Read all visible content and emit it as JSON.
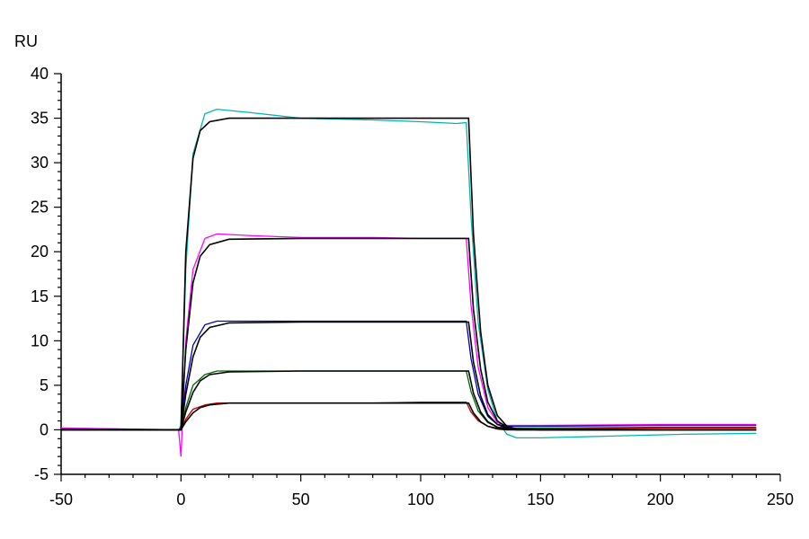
{
  "chart_data": {
    "type": "line",
    "title": "",
    "xlabel": "",
    "ylabel": "RU",
    "xlim": [
      -50,
      250
    ],
    "ylim": [
      -5,
      40
    ],
    "xticks": [
      -50,
      0,
      50,
      100,
      150,
      200,
      250
    ],
    "yticks": [
      -5,
      0,
      5,
      10,
      15,
      20,
      25,
      30,
      35,
      40
    ],
    "grid": false,
    "legend": "none",
    "series": [
      {
        "color": "#00b4b4",
        "x": [
          -50,
          -1,
          0,
          2,
          5,
          10,
          15,
          30,
          50,
          80,
          100,
          115,
          119,
          121,
          124,
          128,
          132,
          136,
          140,
          150,
          180,
          210,
          240
        ],
        "y": [
          0.2,
          0,
          0.5,
          18,
          31,
          35.5,
          36,
          35.6,
          35,
          34.8,
          34.6,
          34.4,
          34.5,
          24,
          12,
          4.5,
          1.0,
          -0.5,
          -0.9,
          -0.9,
          -0.7,
          -0.5,
          -0.4
        ]
      },
      {
        "color": "#ff00ff",
        "x": [
          -50,
          -1,
          0,
          2,
          5,
          10,
          15,
          30,
          50,
          80,
          100,
          115,
          119,
          121,
          124,
          128,
          132,
          136,
          140,
          150,
          200,
          240
        ],
        "y": [
          0.2,
          0,
          -3,
          10,
          18,
          21.5,
          22,
          21.8,
          21.6,
          21.6,
          21.5,
          21.5,
          21.5,
          14,
          7,
          2.5,
          0.8,
          0.5,
          0.5,
          0.5,
          0.6,
          0.6
        ]
      },
      {
        "color": "#0000b4",
        "x": [
          -50,
          -1,
          0,
          2,
          5,
          10,
          15,
          30,
          50,
          80,
          100,
          115,
          119,
          121,
          124,
          128,
          132,
          136,
          140,
          150,
          200,
          240
        ],
        "y": [
          0.1,
          0,
          0.2,
          5,
          9.5,
          11.8,
          12.2,
          12.2,
          12.2,
          12.2,
          12.2,
          12.2,
          12.2,
          8,
          4,
          1.5,
          0.6,
          0.4,
          0.4,
          0.4,
          0.5,
          0.5
        ]
      },
      {
        "color": "#006400",
        "x": [
          -50,
          -1,
          0,
          2,
          5,
          10,
          15,
          30,
          50,
          80,
          100,
          115,
          119,
          121,
          124,
          128,
          132,
          136,
          140,
          150,
          200,
          240
        ],
        "y": [
          0.1,
          0,
          0.2,
          2.5,
          5.0,
          6.2,
          6.6,
          6.6,
          6.6,
          6.6,
          6.6,
          6.6,
          6.6,
          4.3,
          2.1,
          0.8,
          0.3,
          0.2,
          0.2,
          0.2,
          0.3,
          0.3
        ]
      },
      {
        "color": "#c00000",
        "x": [
          -50,
          -1,
          0,
          2,
          5,
          10,
          15,
          30,
          50,
          80,
          100,
          115,
          119,
          121,
          124,
          128,
          132,
          136,
          140,
          150,
          200,
          240
        ],
        "y": [
          0.0,
          0,
          0.1,
          1.2,
          2.3,
          2.8,
          3.0,
          3.0,
          3.0,
          3.0,
          3.1,
          3.1,
          3.1,
          2.0,
          1.0,
          0.4,
          0.2,
          0.1,
          0.1,
          0.1,
          0.2,
          0.2
        ]
      }
    ],
    "fits": [
      {
        "color": "#000000",
        "x": [
          -50,
          -1,
          0,
          2,
          5,
          8,
          12,
          20,
          50,
          80,
          110,
          119,
          120,
          122,
          125,
          128,
          132,
          136,
          140,
          150,
          240
        ],
        "y": [
          0,
          0,
          0,
          20,
          30.5,
          33.6,
          34.6,
          35,
          35,
          35,
          35,
          35,
          35,
          22,
          11,
          5,
          1.6,
          0.4,
          0.1,
          0,
          0
        ]
      },
      {
        "color": "#000000",
        "x": [
          -50,
          -1,
          0,
          2,
          5,
          8,
          12,
          20,
          50,
          80,
          110,
          119,
          120,
          122,
          125,
          128,
          132,
          136,
          140,
          150,
          240
        ],
        "y": [
          0,
          0,
          0,
          9,
          16.5,
          19.5,
          20.8,
          21.4,
          21.5,
          21.5,
          21.5,
          21.5,
          21.5,
          13.5,
          6.8,
          3.1,
          1.0,
          0.3,
          0.1,
          0,
          0
        ]
      },
      {
        "color": "#000000",
        "x": [
          -50,
          -1,
          0,
          2,
          5,
          8,
          12,
          20,
          50,
          80,
          110,
          119,
          120,
          122,
          125,
          128,
          132,
          136,
          140,
          150,
          240
        ],
        "y": [
          0,
          0,
          0,
          4,
          8.2,
          10.4,
          11.5,
          12.0,
          12.1,
          12.1,
          12.1,
          12.1,
          12.1,
          7.6,
          3.8,
          1.7,
          0.6,
          0.2,
          0.1,
          0,
          0
        ]
      },
      {
        "color": "#000000",
        "x": [
          -50,
          -1,
          0,
          2,
          5,
          8,
          12,
          20,
          50,
          80,
          110,
          119,
          120,
          122,
          125,
          128,
          132,
          136,
          140,
          150,
          240
        ],
        "y": [
          0,
          0,
          0,
          2.0,
          4.2,
          5.5,
          6.2,
          6.5,
          6.6,
          6.6,
          6.6,
          6.6,
          6.6,
          4.1,
          2.0,
          0.9,
          0.3,
          0.1,
          0,
          0,
          0
        ]
      },
      {
        "color": "#000000",
        "x": [
          -50,
          -1,
          0,
          2,
          5,
          8,
          12,
          20,
          50,
          80,
          110,
          119,
          120,
          122,
          125,
          128,
          132,
          136,
          140,
          150,
          240
        ],
        "y": [
          0,
          0,
          0,
          0.9,
          1.9,
          2.5,
          2.8,
          3.0,
          3.0,
          3.0,
          3.0,
          3.0,
          3.0,
          1.9,
          0.9,
          0.4,
          0.1,
          0,
          0,
          0,
          0
        ]
      }
    ]
  }
}
